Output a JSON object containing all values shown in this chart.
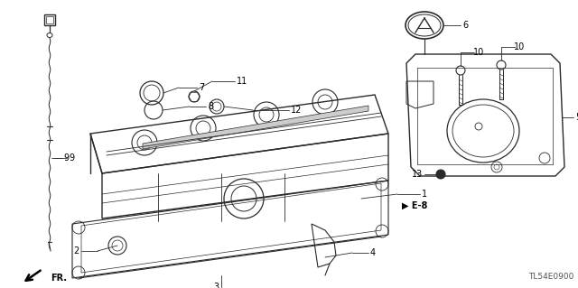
{
  "diagram_code": "TL54E0900",
  "bg_color": "#ffffff",
  "line_color": "#2a2a2a",
  "label_color": "#000000",
  "figsize": [
    6.4,
    3.19
  ],
  "dpi": 100
}
